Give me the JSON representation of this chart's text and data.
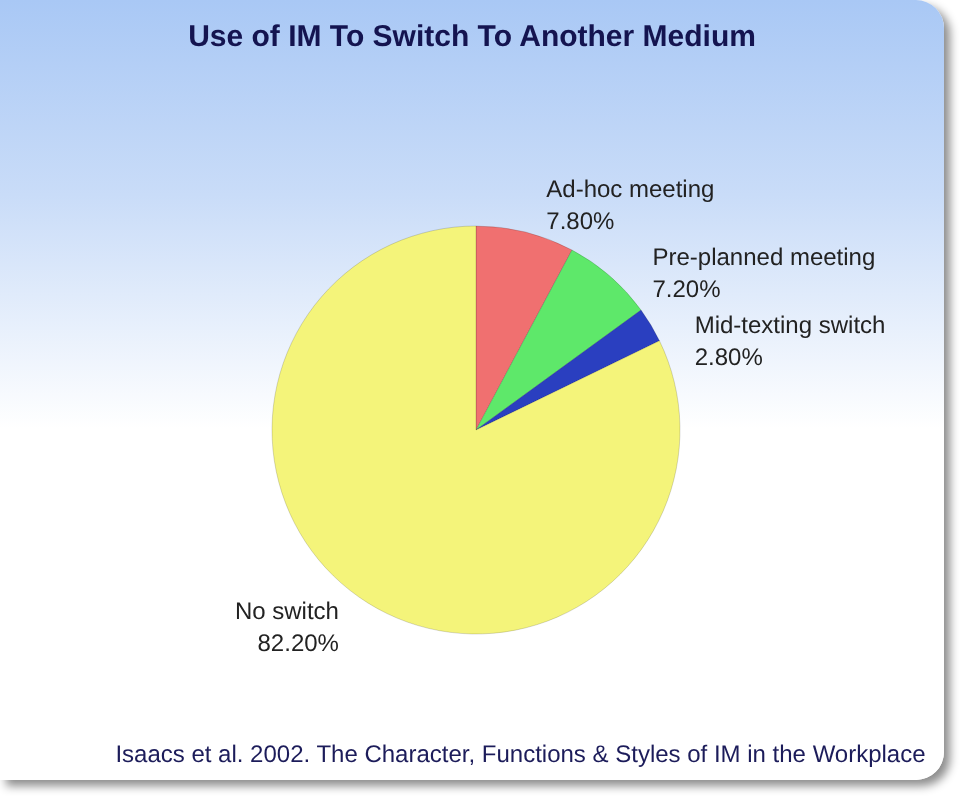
{
  "chart_data": {
    "type": "pie",
    "title": "Use of IM To Switch To Another Medium",
    "categories": [
      "Ad-hoc meeting",
      "Pre-planned meeting",
      "Mid-texting switch",
      "No switch"
    ],
    "values": [
      7.8,
      7.2,
      2.8,
      82.2
    ],
    "colors": [
      "#f07070",
      "#5ee86a",
      "#2a3fc0",
      "#f4f47a"
    ],
    "value_labels": [
      "7.80%",
      "7.20%",
      "2.80%",
      "82.20%"
    ],
    "annotations": [
      "Isaacs et al. 2002. The Character, Functions & Styles of IM in the Workplace"
    ]
  }
}
